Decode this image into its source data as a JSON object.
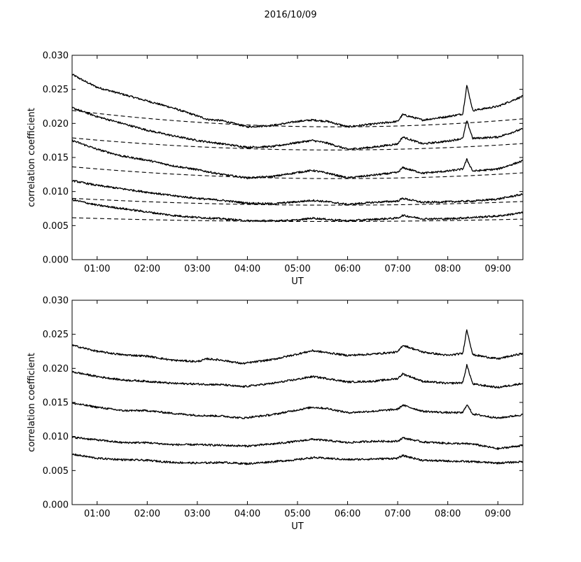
{
  "figure": {
    "suptitle": "2016/10/09"
  },
  "chart_data": [
    {
      "type": "line",
      "panel": "top",
      "xlabel": "UT",
      "ylabel": "correlation coefficient",
      "xlim": [
        0.5,
        9.5
      ],
      "ylim": [
        0.0,
        0.03
      ],
      "x_ticks": [
        1,
        2,
        3,
        4,
        5,
        6,
        7,
        8,
        9
      ],
      "x_tick_labels": [
        "01:00",
        "02:00",
        "03:00",
        "04:00",
        "05:00",
        "06:00",
        "07:00",
        "08:00",
        "09:00"
      ],
      "y_ticks": [
        0.0,
        0.005,
        0.01,
        0.015,
        0.02,
        0.025,
        0.03
      ],
      "y_tick_labels": [
        "0.000",
        "0.005",
        "0.010",
        "0.015",
        "0.020",
        "0.025",
        "0.030"
      ],
      "series": [
        {
          "style": "solid",
          "x": [
            0.5,
            0.75,
            1,
            1.5,
            2,
            2.5,
            3,
            3.2,
            3.5,
            4,
            4.5,
            5,
            5.3,
            5.6,
            6,
            6.5,
            7,
            7.1,
            7.5,
            8,
            8.3,
            8.38,
            8.5,
            9,
            9.5
          ],
          "y": [
            0.0272,
            0.0262,
            0.0253,
            0.0243,
            0.0233,
            0.0223,
            0.0211,
            0.0206,
            0.0204,
            0.0195,
            0.0197,
            0.0203,
            0.0205,
            0.0203,
            0.0195,
            0.0199,
            0.0203,
            0.0213,
            0.0205,
            0.021,
            0.0214,
            0.0256,
            0.0219,
            0.0225,
            0.024
          ]
        },
        {
          "style": "solid",
          "x": [
            0.5,
            1,
            1.5,
            2,
            2.5,
            3,
            3.5,
            4,
            4.5,
            5,
            5.3,
            5.6,
            6,
            6.5,
            7,
            7.1,
            7.5,
            8,
            8.3,
            8.38,
            8.5,
            9,
            9.5
          ],
          "y": [
            0.0223,
            0.021,
            0.02,
            0.019,
            0.0182,
            0.0175,
            0.017,
            0.0165,
            0.0166,
            0.0172,
            0.0175,
            0.0171,
            0.0162,
            0.0165,
            0.017,
            0.018,
            0.017,
            0.0174,
            0.0178,
            0.0204,
            0.0178,
            0.018,
            0.0192
          ]
        },
        {
          "style": "solid",
          "x": [
            0.5,
            1,
            1.5,
            2,
            2.5,
            3,
            3.5,
            4,
            4.5,
            5,
            5.3,
            5.6,
            6,
            6.5,
            7,
            7.1,
            7.5,
            8,
            8.3,
            8.38,
            8.5,
            9,
            9.5
          ],
          "y": [
            0.0175,
            0.0162,
            0.0152,
            0.0146,
            0.0138,
            0.0132,
            0.0125,
            0.012,
            0.0122,
            0.0128,
            0.0131,
            0.0127,
            0.012,
            0.0124,
            0.0128,
            0.0135,
            0.0127,
            0.013,
            0.0133,
            0.0147,
            0.013,
            0.0133,
            0.0145
          ]
        },
        {
          "style": "solid",
          "x": [
            0.5,
            1,
            1.5,
            2,
            2.5,
            3,
            3.5,
            4,
            4.5,
            5,
            5.3,
            5.6,
            6,
            6.5,
            7,
            7.1,
            7.5,
            8,
            8.5,
            9,
            9.5
          ],
          "y": [
            0.0116,
            0.0109,
            0.0104,
            0.0099,
            0.0094,
            0.009,
            0.0087,
            0.0083,
            0.0082,
            0.0085,
            0.0087,
            0.0085,
            0.0081,
            0.0084,
            0.0086,
            0.009,
            0.0084,
            0.0085,
            0.0086,
            0.0089,
            0.0096
          ]
        },
        {
          "style": "solid",
          "x": [
            0.5,
            1,
            1.5,
            2,
            2.5,
            3,
            3.5,
            4,
            4.5,
            5,
            5.3,
            5.6,
            6,
            6.5,
            7,
            7.1,
            7.5,
            8,
            8.5,
            9,
            9.5
          ],
          "y": [
            0.0088,
            0.008,
            0.0075,
            0.007,
            0.0065,
            0.0062,
            0.006,
            0.0057,
            0.0057,
            0.0058,
            0.0061,
            0.0059,
            0.0057,
            0.0059,
            0.0061,
            0.0065,
            0.006,
            0.006,
            0.0062,
            0.0064,
            0.0069
          ]
        },
        {
          "style": "dashed",
          "fit": {
            "a": 8.56e-05,
            "c": 0.0195,
            "x0": 5.8
          }
        },
        {
          "style": "dashed",
          "fit": {
            "a": 6.56e-05,
            "c": 0.0161,
            "x0": 5.7
          }
        },
        {
          "style": "dashed",
          "fit": {
            "a": 6.16e-05,
            "c": 0.0119,
            "x0": 5.8
          }
        },
        {
          "style": "dashed",
          "fit": {
            "a": 3.71e-05,
            "c": 0.008,
            "x0": 5.7
          }
        },
        {
          "style": "dashed",
          "fit": {
            "a": 2.22e-05,
            "c": 0.0056,
            "x0": 5.5
          }
        }
      ]
    },
    {
      "type": "line",
      "panel": "bottom",
      "xlabel": "UT",
      "ylabel": "correlation coefficient",
      "xlim": [
        0.5,
        9.5
      ],
      "ylim": [
        0.0,
        0.03
      ],
      "x_ticks": [
        1,
        2,
        3,
        4,
        5,
        6,
        7,
        8,
        9
      ],
      "x_tick_labels": [
        "01:00",
        "02:00",
        "03:00",
        "04:00",
        "05:00",
        "06:00",
        "07:00",
        "08:00",
        "09:00"
      ],
      "y_ticks": [
        0.0,
        0.005,
        0.01,
        0.015,
        0.02,
        0.025,
        0.03
      ],
      "y_tick_labels": [
        "0.000",
        "0.005",
        "0.010",
        "0.015",
        "0.020",
        "0.025",
        "0.030"
      ],
      "series": [
        {
          "style": "solid",
          "x": [
            0.5,
            1,
            1.5,
            2,
            2.5,
            3,
            3.2,
            3.5,
            3.9,
            4.5,
            5,
            5.3,
            5.6,
            6,
            6.5,
            7,
            7.1,
            7.5,
            8,
            8.3,
            8.38,
            8.5,
            9,
            9.5
          ],
          "y": [
            0.0234,
            0.0225,
            0.022,
            0.0218,
            0.0212,
            0.021,
            0.0214,
            0.0212,
            0.0207,
            0.0213,
            0.0221,
            0.0226,
            0.0223,
            0.0219,
            0.0221,
            0.0224,
            0.0234,
            0.0224,
            0.0219,
            0.0222,
            0.0257,
            0.022,
            0.0214,
            0.0222
          ]
        },
        {
          "style": "solid",
          "x": [
            0.5,
            1,
            1.5,
            2,
            2.5,
            3,
            3.5,
            3.9,
            4.5,
            5,
            5.3,
            5.6,
            6,
            6.5,
            7,
            7.1,
            7.5,
            8,
            8.3,
            8.38,
            8.5,
            9,
            9.5
          ],
          "y": [
            0.0195,
            0.0188,
            0.0183,
            0.0181,
            0.0178,
            0.0177,
            0.0176,
            0.0173,
            0.0178,
            0.0184,
            0.0188,
            0.0185,
            0.018,
            0.0181,
            0.0185,
            0.0192,
            0.0181,
            0.0178,
            0.0179,
            0.0205,
            0.0177,
            0.0172,
            0.0178
          ]
        },
        {
          "style": "solid",
          "x": [
            0.5,
            1,
            1.5,
            2,
            2.5,
            3,
            3.5,
            3.9,
            4.5,
            5,
            5.3,
            5.6,
            6,
            6.5,
            7,
            7.1,
            7.5,
            8,
            8.3,
            8.38,
            8.5,
            9,
            9.5
          ],
          "y": [
            0.0149,
            0.0143,
            0.0138,
            0.0138,
            0.0134,
            0.0131,
            0.013,
            0.0127,
            0.0132,
            0.0139,
            0.0143,
            0.0141,
            0.0135,
            0.0137,
            0.014,
            0.0146,
            0.0137,
            0.0135,
            0.0135,
            0.0147,
            0.0133,
            0.0127,
            0.0132
          ]
        },
        {
          "style": "solid",
          "x": [
            0.5,
            1,
            1.5,
            2,
            2.5,
            3,
            3.5,
            4,
            4.5,
            5,
            5.3,
            5.6,
            6,
            6.5,
            7,
            7.1,
            7.5,
            8,
            8.5,
            9,
            9.5
          ],
          "y": [
            0.0099,
            0.0095,
            0.0091,
            0.0091,
            0.0088,
            0.0088,
            0.0087,
            0.0086,
            0.0089,
            0.0093,
            0.0096,
            0.0094,
            0.0091,
            0.0093,
            0.0093,
            0.0098,
            0.0092,
            0.009,
            0.0089,
            0.0082,
            0.0087
          ]
        },
        {
          "style": "solid",
          "x": [
            0.5,
            1,
            1.5,
            2,
            2.5,
            3,
            3.5,
            4,
            4.5,
            5,
            5.3,
            5.6,
            6,
            6.5,
            7,
            7.1,
            7.5,
            8,
            8.5,
            9,
            9.5
          ],
          "y": [
            0.0074,
            0.0068,
            0.0066,
            0.0065,
            0.0062,
            0.0061,
            0.0062,
            0.006,
            0.0063,
            0.0066,
            0.0069,
            0.0068,
            0.0066,
            0.0067,
            0.0068,
            0.0072,
            0.0065,
            0.0064,
            0.0063,
            0.0061,
            0.0063
          ]
        }
      ]
    }
  ]
}
